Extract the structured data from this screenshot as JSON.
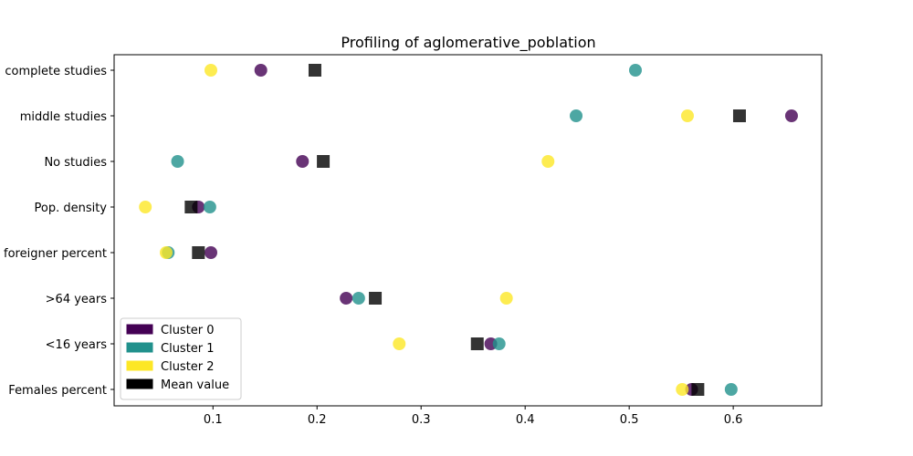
{
  "chart_data": {
    "type": "scatter",
    "title": "Profiling of aglomerative_poblation",
    "xlabel": "",
    "ylabel": "",
    "xlim": [
      0.005,
      0.685
    ],
    "x_ticks": [
      0.1,
      0.2,
      0.3,
      0.4,
      0.5,
      0.6
    ],
    "x_tick_labels": [
      "0.1",
      "0.2",
      "0.3",
      "0.4",
      "0.5",
      "0.6"
    ],
    "categories": [
      "complete studies",
      "middle studies",
      "No studies",
      "Pop. density",
      "foreigner percent",
      ">64 years",
      "<16 years",
      "Females percent"
    ],
    "grid": false,
    "legend_position": "lower-left",
    "series": [
      {
        "name": "Cluster 0",
        "color": "#440154",
        "marker": "circle",
        "values": [
          0.146,
          0.656,
          0.186,
          0.086,
          0.098,
          0.228,
          0.367,
          0.56
        ]
      },
      {
        "name": "Cluster 1",
        "color": "#21918c",
        "marker": "circle",
        "values": [
          0.506,
          0.449,
          0.066,
          0.097,
          0.057,
          0.24,
          0.375,
          0.598
        ]
      },
      {
        "name": "Cluster 2",
        "color": "#fde725",
        "marker": "circle",
        "values": [
          0.098,
          0.556,
          0.422,
          0.035,
          0.055,
          0.382,
          0.279,
          0.551
        ]
      },
      {
        "name": "Mean value",
        "color": "#000000",
        "marker": "square",
        "values": [
          0.198,
          0.606,
          0.206,
          0.079,
          0.086,
          0.256,
          0.354,
          0.566
        ]
      }
    ]
  }
}
